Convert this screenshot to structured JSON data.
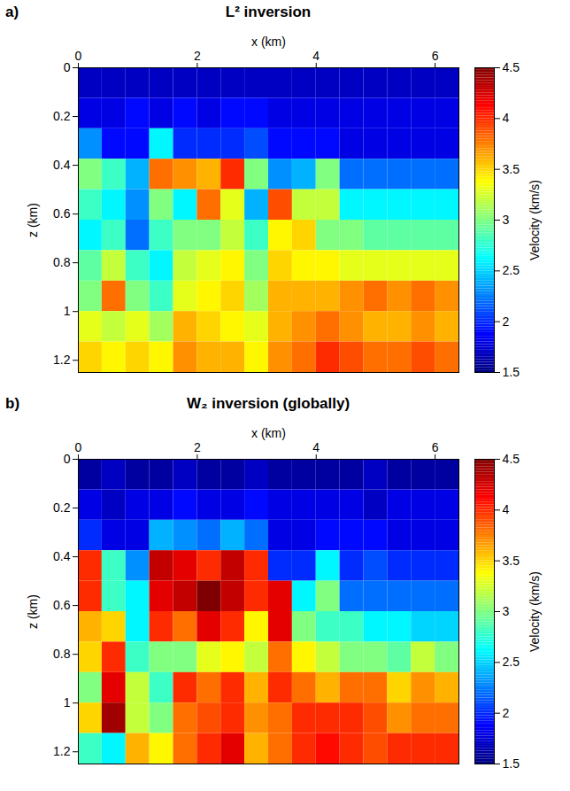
{
  "chart_data": [
    {
      "type": "heatmap",
      "title": "L² inversion",
      "annotations": [
        "a)"
      ],
      "xlabel": "x (km)",
      "ylabel": "z (km)",
      "xlim": [
        0,
        6.4
      ],
      "ylim": [
        0,
        1.25
      ],
      "xticks": [
        0,
        2,
        4,
        6
      ],
      "yticks": [
        0,
        0.2,
        0.4,
        0.6,
        0.8,
        1,
        1.2
      ],
      "color": "jet",
      "cells": {
        "x_edges": [
          0,
          0.4,
          0.8,
          1.2,
          1.6,
          2,
          2.4,
          2.8,
          3.2,
          3.6,
          4,
          4.4,
          4.8,
          5.2,
          5.6,
          6,
          6.4
        ],
        "z_edges": [
          0,
          0.125,
          0.25,
          0.375,
          0.5,
          0.625,
          0.75,
          0.875,
          1,
          1.125,
          1.25
        ],
        "values": [
          [
            1.7,
            1.7,
            1.7,
            1.7,
            1.7,
            1.7,
            1.7,
            1.7,
            1.7,
            1.7,
            1.7,
            1.7,
            1.7,
            1.7,
            1.7,
            1.7
          ],
          [
            1.8,
            1.8,
            1.9,
            1.8,
            1.9,
            1.8,
            1.9,
            1.9,
            1.8,
            1.8,
            1.8,
            1.8,
            1.8,
            1.8,
            1.8,
            1.8
          ],
          [
            2.3,
            1.9,
            1.9,
            2.6,
            2.0,
            2.0,
            2.0,
            2.1,
            1.9,
            1.9,
            1.9,
            1.8,
            1.8,
            1.8,
            1.8,
            1.8
          ],
          [
            3.0,
            2.8,
            2.4,
            3.8,
            3.7,
            3.6,
            4.0,
            3.0,
            2.3,
            2.4,
            3.0,
            2.2,
            2.2,
            2.2,
            2.2,
            2.2
          ],
          [
            2.8,
            2.6,
            2.3,
            3.0,
            2.6,
            3.8,
            3.3,
            2.4,
            3.9,
            3.2,
            3.2,
            2.6,
            2.6,
            2.6,
            2.6,
            2.6
          ],
          [
            2.6,
            2.8,
            2.2,
            2.8,
            3.0,
            3.0,
            3.2,
            2.8,
            3.4,
            3.5,
            3.0,
            3.0,
            2.9,
            2.9,
            2.9,
            2.9
          ],
          [
            2.9,
            3.2,
            2.8,
            2.6,
            3.2,
            3.3,
            3.4,
            3.0,
            3.5,
            3.4,
            3.4,
            3.3,
            3.3,
            3.3,
            3.3,
            3.3
          ],
          [
            3.0,
            3.8,
            3.0,
            2.8,
            3.3,
            3.4,
            3.5,
            3.1,
            3.6,
            3.6,
            3.6,
            3.7,
            3.8,
            3.7,
            3.8,
            3.7
          ],
          [
            3.3,
            3.2,
            3.3,
            3.1,
            3.6,
            3.5,
            3.4,
            3.3,
            3.6,
            3.7,
            3.8,
            3.7,
            3.6,
            3.6,
            3.7,
            3.6
          ],
          [
            3.5,
            3.4,
            3.5,
            3.4,
            3.7,
            3.6,
            3.6,
            3.4,
            3.7,
            3.8,
            4.0,
            3.9,
            3.8,
            3.8,
            3.9,
            3.8
          ]
        ]
      },
      "colorbar": {
        "label": "Velocity (km/s)",
        "range": [
          1.5,
          4.5
        ],
        "ticks": [
          1.5,
          2,
          2.5,
          3,
          3.5,
          4,
          4.5
        ]
      }
    },
    {
      "type": "heatmap",
      "title": "W₂ inversion (globally)",
      "annotations": [
        "b)"
      ],
      "xlabel": "x (km)",
      "ylabel": "z (km)",
      "xlim": [
        0,
        6.4
      ],
      "ylim": [
        0,
        1.25
      ],
      "xticks": [
        0,
        2,
        4,
        6
      ],
      "yticks": [
        0,
        0.2,
        0.4,
        0.6,
        0.8,
        1,
        1.2
      ],
      "color": "jet",
      "cells": {
        "x_edges": [
          0,
          0.4,
          0.8,
          1.2,
          1.6,
          2,
          2.4,
          2.8,
          3.2,
          3.6,
          4,
          4.4,
          4.8,
          5.2,
          5.6,
          6,
          6.4
        ],
        "z_edges": [
          0,
          0.125,
          0.25,
          0.375,
          0.5,
          0.625,
          0.75,
          0.875,
          1,
          1.125,
          1.25
        ],
        "values": [
          [
            1.6,
            1.7,
            1.6,
            1.6,
            1.7,
            1.6,
            1.6,
            1.7,
            1.6,
            1.6,
            1.6,
            1.6,
            1.7,
            1.6,
            1.6,
            1.6
          ],
          [
            1.8,
            1.7,
            1.8,
            1.8,
            1.9,
            1.8,
            1.8,
            1.9,
            1.8,
            1.8,
            1.8,
            1.8,
            1.7,
            1.8,
            1.8,
            1.8
          ],
          [
            2.0,
            1.8,
            1.8,
            2.4,
            2.3,
            2.2,
            2.4,
            2.2,
            1.8,
            1.8,
            1.9,
            1.9,
            1.9,
            1.8,
            1.8,
            1.8
          ],
          [
            4.0,
            2.8,
            2.3,
            4.3,
            4.2,
            4.0,
            4.3,
            4.0,
            2.0,
            2.0,
            2.6,
            2.0,
            2.1,
            2.0,
            2.0,
            2.0
          ],
          [
            4.0,
            2.8,
            2.6,
            4.2,
            4.3,
            4.5,
            4.3,
            4.0,
            4.2,
            2.6,
            3.0,
            2.2,
            2.2,
            2.2,
            2.2,
            2.2
          ],
          [
            3.6,
            3.5,
            2.6,
            4.0,
            3.8,
            4.2,
            4.0,
            3.4,
            4.2,
            3.0,
            2.8,
            2.8,
            2.6,
            2.6,
            2.5,
            2.5
          ],
          [
            3.5,
            4.0,
            2.8,
            3.0,
            3.0,
            3.3,
            3.4,
            3.2,
            3.8,
            3.4,
            3.2,
            3.0,
            3.0,
            2.9,
            3.2,
            3.0
          ],
          [
            3.0,
            4.2,
            3.2,
            2.8,
            4.0,
            3.8,
            4.0,
            3.6,
            4.0,
            3.8,
            3.6,
            3.8,
            3.8,
            3.5,
            3.7,
            3.6
          ],
          [
            3.5,
            4.4,
            3.2,
            3.0,
            3.8,
            3.9,
            4.0,
            3.7,
            3.8,
            4.0,
            4.0,
            4.0,
            3.9,
            3.7,
            3.8,
            3.8
          ],
          [
            2.8,
            2.6,
            3.6,
            3.4,
            3.8,
            4.0,
            4.2,
            3.6,
            3.8,
            4.0,
            4.1,
            4.0,
            3.9,
            4.0,
            4.0,
            4.0
          ]
        ]
      },
      "colorbar": {
        "label": "Velocity (km/s)",
        "range": [
          1.5,
          4.5
        ],
        "ticks": [
          1.5,
          2,
          2.5,
          3,
          3.5,
          4,
          4.5
        ]
      }
    }
  ]
}
